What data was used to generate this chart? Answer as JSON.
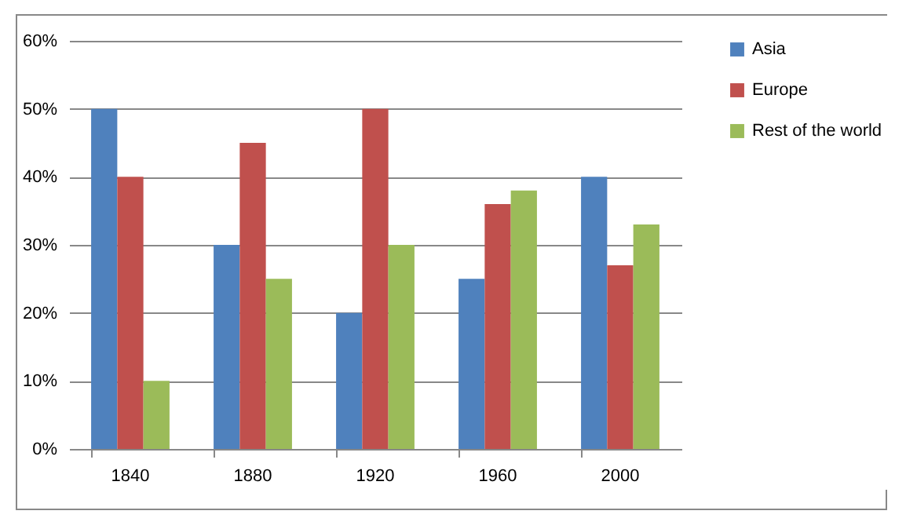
{
  "chart_data": {
    "type": "bar",
    "categories": [
      "1840",
      "1880",
      "1920",
      "1960",
      "2000"
    ],
    "series": [
      {
        "name": "Asia",
        "color": "#4f81bd",
        "values": [
          50,
          30,
          20,
          25,
          40
        ]
      },
      {
        "name": "Europe",
        "color": "#c0504d",
        "values": [
          40,
          45,
          50,
          36,
          27
        ]
      },
      {
        "name": "Rest of the world",
        "color": "#9bbb59",
        "values": [
          10,
          25,
          30,
          38,
          33
        ]
      }
    ],
    "ylim": [
      0,
      60
    ],
    "yticks": [
      {
        "value": 0,
        "label": "0%"
      },
      {
        "value": 10,
        "label": "10%"
      },
      {
        "value": 20,
        "label": "20%"
      },
      {
        "value": 30,
        "label": "30%"
      },
      {
        "value": 40,
        "label": "40%"
      },
      {
        "value": 50,
        "label": "50%"
      },
      {
        "value": 60,
        "label": "60%"
      }
    ],
    "grid": "y",
    "legend": "right"
  }
}
